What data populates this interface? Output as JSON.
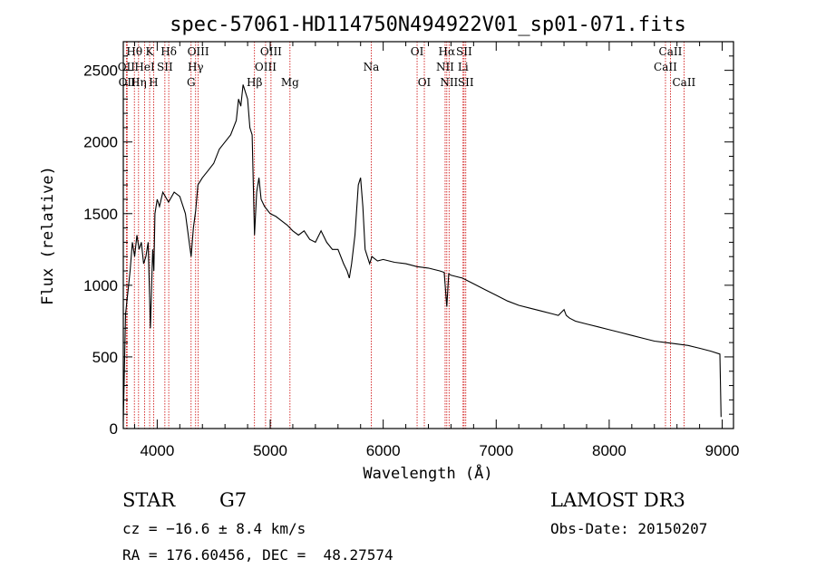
{
  "chart_data": {
    "type": "line",
    "title": "spec-57061-HD114750N494922V01_sp01-071.fits",
    "xlabel": "Wavelength (Å)",
    "ylabel": "Flux (relative)",
    "xlim": [
      3700,
      9100
    ],
    "ylim": [
      0,
      2700
    ],
    "x_ticks": [
      4000,
      5000,
      6000,
      7000,
      8000,
      9000
    ],
    "y_ticks": [
      0,
      500,
      1000,
      1500,
      2000,
      2500
    ],
    "x_tick_labels": [
      "4000",
      "5000",
      "6000",
      "7000",
      "8000",
      "9000"
    ],
    "y_tick_labels": [
      "0",
      "500",
      "1000",
      "1500",
      "2000",
      "2500"
    ],
    "grid": false,
    "series": [
      {
        "color": "#000000",
        "x": [
          3700,
          3720,
          3740,
          3760,
          3780,
          3800,
          3820,
          3840,
          3860,
          3880,
          3900,
          3920,
          3940,
          3960,
          3970,
          3980,
          4000,
          4020,
          4050,
          4100,
          4150,
          4200,
          4250,
          4300,
          4320,
          4340,
          4360,
          4400,
          4450,
          4500,
          4550,
          4600,
          4650,
          4700,
          4720,
          4740,
          4760,
          4780,
          4800,
          4820,
          4840,
          4861,
          4880,
          4900,
          4920,
          4950,
          5000,
          5050,
          5100,
          5150,
          5200,
          5250,
          5300,
          5350,
          5400,
          5450,
          5500,
          5550,
          5600,
          5650,
          5680,
          5700,
          5720,
          5750,
          5780,
          5800,
          5820,
          5840,
          5860,
          5880,
          5900,
          5950,
          6000,
          6100,
          6200,
          6300,
          6400,
          6500,
          6540,
          6563,
          6580,
          6600,
          6650,
          6700,
          6800,
          6900,
          7000,
          7100,
          7200,
          7300,
          7400,
          7500,
          7550,
          7600,
          7620,
          7650,
          7700,
          7800,
          7900,
          8000,
          8100,
          8200,
          8300,
          8400,
          8500,
          8600,
          8700,
          8800,
          8900,
          8980,
          8990
        ],
        "y": [
          50,
          800,
          950,
          1100,
          1300,
          1200,
          1350,
          1250,
          1300,
          1150,
          1200,
          1300,
          700,
          1250,
          1100,
          1500,
          1600,
          1550,
          1650,
          1580,
          1650,
          1620,
          1500,
          1200,
          1400,
          1520,
          1700,
          1750,
          1800,
          1850,
          1950,
          2000,
          2050,
          2150,
          2300,
          2250,
          2400,
          2350,
          2300,
          2100,
          2050,
          1350,
          1650,
          1750,
          1600,
          1550,
          1500,
          1480,
          1450,
          1420,
          1380,
          1350,
          1380,
          1320,
          1300,
          1380,
          1300,
          1250,
          1250,
          1150,
          1100,
          1050,
          1150,
          1350,
          1700,
          1750,
          1550,
          1250,
          1200,
          1150,
          1200,
          1170,
          1180,
          1160,
          1150,
          1130,
          1120,
          1100,
          1090,
          850,
          1080,
          1070,
          1060,
          1050,
          1010,
          970,
          930,
          890,
          860,
          840,
          820,
          800,
          790,
          830,
          790,
          770,
          750,
          730,
          710,
          690,
          670,
          650,
          630,
          610,
          600,
          590,
          580,
          560,
          540,
          520,
          80
        ]
      }
    ],
    "line_markers": [
      {
        "wavelength": 3727,
        "label": "OII"
      },
      {
        "wavelength": 3734,
        "label": "OII"
      },
      {
        "wavelength": 3798,
        "label": "Hθ"
      },
      {
        "wavelength": 3835,
        "label": "Hη"
      },
      {
        "wavelength": 3889,
        "label": "HeI"
      },
      {
        "wavelength": 3933,
        "label": "K"
      },
      {
        "wavelength": 3968,
        "label": "H"
      },
      {
        "wavelength": 4068,
        "label": "SII"
      },
      {
        "wavelength": 4102,
        "label": "Hδ"
      },
      {
        "wavelength": 4300,
        "label": "G"
      },
      {
        "wavelength": 4340,
        "label": "Hγ"
      },
      {
        "wavelength": 4363,
        "label": "OIII"
      },
      {
        "wavelength": 4861,
        "label": "Hβ"
      },
      {
        "wavelength": 4959,
        "label": "OIII"
      },
      {
        "wavelength": 5007,
        "label": "OIII"
      },
      {
        "wavelength": 5175,
        "label": "Mg"
      },
      {
        "wavelength": 5894,
        "label": "Na"
      },
      {
        "wavelength": 6300,
        "label": "OI"
      },
      {
        "wavelength": 6364,
        "label": "OI"
      },
      {
        "wavelength": 6548,
        "label": "NII"
      },
      {
        "wavelength": 6563,
        "label": "Hα"
      },
      {
        "wavelength": 6583,
        "label": "NII"
      },
      {
        "wavelength": 6707,
        "label": "Li"
      },
      {
        "wavelength": 6716,
        "label": "SII"
      },
      {
        "wavelength": 6731,
        "label": "SII"
      },
      {
        "wavelength": 8498,
        "label": "CaII"
      },
      {
        "wavelength": 8542,
        "label": "CaII"
      },
      {
        "wavelength": 8662,
        "label": "CaII"
      }
    ],
    "annotations": [
      {
        "text": "Hθ",
        "row": 1,
        "at": 3798
      },
      {
        "text": "K",
        "row": 1,
        "at": 3933
      },
      {
        "text": "Hδ",
        "row": 1,
        "at": 4102
      },
      {
        "text": "OIII",
        "row": 1,
        "at": 4363
      },
      {
        "text": "OIII",
        "row": 1,
        "at": 5007
      },
      {
        "text": "OI",
        "row": 1,
        "at": 6300
      },
      {
        "text": "Hα",
        "row": 1,
        "at": 6563
      },
      {
        "text": "SII",
        "row": 1,
        "at": 6716
      },
      {
        "text": "CaII",
        "row": 1,
        "at": 8542
      },
      {
        "text": "OII",
        "row": 2,
        "at": 3727
      },
      {
        "text": "HeI",
        "row": 2,
        "at": 3889
      },
      {
        "text": "SII",
        "row": 2,
        "at": 4068
      },
      {
        "text": "Hγ",
        "row": 2,
        "at": 4340
      },
      {
        "text": "OIII",
        "row": 2,
        "at": 4959
      },
      {
        "text": "NII",
        "row": 2,
        "at": 6548
      },
      {
        "text": "Li",
        "row": 2,
        "at": 6707
      },
      {
        "text": "CaII",
        "row": 2,
        "at": 8498
      },
      {
        "text": "OII",
        "row": 3,
        "at": 3734
      },
      {
        "text": "Hη",
        "row": 3,
        "at": 3835
      },
      {
        "text": "H",
        "row": 3,
        "at": 3968
      },
      {
        "text": "G",
        "row": 3,
        "at": 4300
      },
      {
        "text": "Hβ",
        "row": 3,
        "at": 4861
      },
      {
        "text": "Mg",
        "row": 3,
        "at": 5175
      },
      {
        "text": "Na",
        "row": 2,
        "at": 5894
      },
      {
        "text": "OI",
        "row": 3,
        "at": 6364
      },
      {
        "text": "NII",
        "row": 3,
        "at": 6583
      },
      {
        "text": "SII",
        "row": 3,
        "at": 6731
      },
      {
        "text": "CaII",
        "row": 3,
        "at": 8662
      }
    ],
    "colors": {
      "spectrum": "#000000",
      "line_markers": "#cc0000",
      "axes": "#000000"
    }
  },
  "info": {
    "object_class": "STAR",
    "subclass": "G7",
    "survey": "LAMOST DR3",
    "redshift": "cz = −16.6 ± 8.4 km/s",
    "obs_date": "Obs-Date: 20150207",
    "coords": "RA = 176.60456, DEC =  48.27574"
  }
}
